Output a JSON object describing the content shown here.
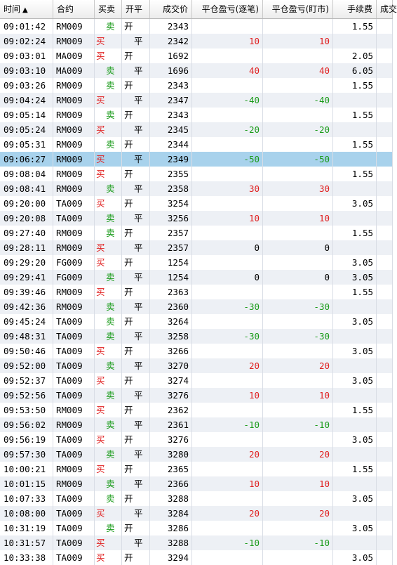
{
  "header": {
    "time": "时间",
    "sort_icon": "▲",
    "code": "合约",
    "bs": "买卖",
    "oc": "开平",
    "price": "成交价",
    "pl_trade": "平仓盈亏(逐笔)",
    "pl_mark": "平仓盈亏(盯市)",
    "fee": "手续费",
    "amount": "成交"
  },
  "colors": {
    "buy": "#e02020",
    "sell": "#1a9b1a",
    "selected_row": "#a8d2ec"
  },
  "selected_index": 9,
  "rows": [
    {
      "time": "09:01:42",
      "code": "RM009",
      "bs": "卖",
      "oc": "开",
      "price": "2343",
      "pl1": "",
      "pl2": "",
      "fee": "1.55"
    },
    {
      "time": "09:02:24",
      "code": "RM009",
      "bs": "买",
      "oc": "平",
      "price": "2342",
      "pl1": "10",
      "pl2": "10",
      "fee": ""
    },
    {
      "time": "09:03:01",
      "code": "MA009",
      "bs": "买",
      "oc": "开",
      "price": "1692",
      "pl1": "",
      "pl2": "",
      "fee": "2.05"
    },
    {
      "time": "09:03:10",
      "code": "MA009",
      "bs": "卖",
      "oc": "平",
      "price": "1696",
      "pl1": "40",
      "pl2": "40",
      "fee": "6.05"
    },
    {
      "time": "09:03:26",
      "code": "RM009",
      "bs": "卖",
      "oc": "开",
      "price": "2343",
      "pl1": "",
      "pl2": "",
      "fee": "1.55"
    },
    {
      "time": "09:04:24",
      "code": "RM009",
      "bs": "买",
      "oc": "平",
      "price": "2347",
      "pl1": "-40",
      "pl2": "-40",
      "fee": ""
    },
    {
      "time": "09:05:14",
      "code": "RM009",
      "bs": "卖",
      "oc": "开",
      "price": "2343",
      "pl1": "",
      "pl2": "",
      "fee": "1.55"
    },
    {
      "time": "09:05:24",
      "code": "RM009",
      "bs": "买",
      "oc": "平",
      "price": "2345",
      "pl1": "-20",
      "pl2": "-20",
      "fee": ""
    },
    {
      "time": "09:05:31",
      "code": "RM009",
      "bs": "卖",
      "oc": "开",
      "price": "2344",
      "pl1": "",
      "pl2": "",
      "fee": "1.55"
    },
    {
      "time": "09:06:27",
      "code": "RM009",
      "bs": "买",
      "oc": "平",
      "price": "2349",
      "pl1": "-50",
      "pl2": "-50",
      "fee": ""
    },
    {
      "time": "09:08:04",
      "code": "RM009",
      "bs": "买",
      "oc": "开",
      "price": "2355",
      "pl1": "",
      "pl2": "",
      "fee": "1.55"
    },
    {
      "time": "09:08:41",
      "code": "RM009",
      "bs": "卖",
      "oc": "平",
      "price": "2358",
      "pl1": "30",
      "pl2": "30",
      "fee": ""
    },
    {
      "time": "09:20:00",
      "code": "TA009",
      "bs": "买",
      "oc": "开",
      "price": "3254",
      "pl1": "",
      "pl2": "",
      "fee": "3.05"
    },
    {
      "time": "09:20:08",
      "code": "TA009",
      "bs": "卖",
      "oc": "平",
      "price": "3256",
      "pl1": "10",
      "pl2": "10",
      "fee": ""
    },
    {
      "time": "09:27:40",
      "code": "RM009",
      "bs": "卖",
      "oc": "开",
      "price": "2357",
      "pl1": "",
      "pl2": "",
      "fee": "1.55"
    },
    {
      "time": "09:28:11",
      "code": "RM009",
      "bs": "买",
      "oc": "平",
      "price": "2357",
      "pl1": "0",
      "pl2": "0",
      "fee": ""
    },
    {
      "time": "09:29:20",
      "code": "FG009",
      "bs": "买",
      "oc": "开",
      "price": "1254",
      "pl1": "",
      "pl2": "",
      "fee": "3.05"
    },
    {
      "time": "09:29:41",
      "code": "FG009",
      "bs": "卖",
      "oc": "平",
      "price": "1254",
      "pl1": "0",
      "pl2": "0",
      "fee": "3.05"
    },
    {
      "time": "09:39:46",
      "code": "RM009",
      "bs": "买",
      "oc": "开",
      "price": "2363",
      "pl1": "",
      "pl2": "",
      "fee": "1.55"
    },
    {
      "time": "09:42:36",
      "code": "RM009",
      "bs": "卖",
      "oc": "平",
      "price": "2360",
      "pl1": "-30",
      "pl2": "-30",
      "fee": ""
    },
    {
      "time": "09:45:24",
      "code": "TA009",
      "bs": "卖",
      "oc": "开",
      "price": "3264",
      "pl1": "",
      "pl2": "",
      "fee": "3.05"
    },
    {
      "time": "09:48:31",
      "code": "TA009",
      "bs": "卖",
      "oc": "平",
      "price": "3258",
      "pl1": "-30",
      "pl2": "-30",
      "fee": ""
    },
    {
      "time": "09:50:46",
      "code": "TA009",
      "bs": "买",
      "oc": "开",
      "price": "3266",
      "pl1": "",
      "pl2": "",
      "fee": "3.05"
    },
    {
      "time": "09:52:00",
      "code": "TA009",
      "bs": "卖",
      "oc": "平",
      "price": "3270",
      "pl1": "20",
      "pl2": "20",
      "fee": ""
    },
    {
      "time": "09:52:37",
      "code": "TA009",
      "bs": "买",
      "oc": "开",
      "price": "3274",
      "pl1": "",
      "pl2": "",
      "fee": "3.05"
    },
    {
      "time": "09:52:56",
      "code": "TA009",
      "bs": "卖",
      "oc": "平",
      "price": "3276",
      "pl1": "10",
      "pl2": "10",
      "fee": ""
    },
    {
      "time": "09:53:50",
      "code": "RM009",
      "bs": "买",
      "oc": "开",
      "price": "2362",
      "pl1": "",
      "pl2": "",
      "fee": "1.55"
    },
    {
      "time": "09:56:02",
      "code": "RM009",
      "bs": "卖",
      "oc": "平",
      "price": "2361",
      "pl1": "-10",
      "pl2": "-10",
      "fee": ""
    },
    {
      "time": "09:56:19",
      "code": "TA009",
      "bs": "买",
      "oc": "开",
      "price": "3276",
      "pl1": "",
      "pl2": "",
      "fee": "3.05"
    },
    {
      "time": "09:57:30",
      "code": "TA009",
      "bs": "卖",
      "oc": "平",
      "price": "3280",
      "pl1": "20",
      "pl2": "20",
      "fee": ""
    },
    {
      "time": "10:00:21",
      "code": "RM009",
      "bs": "买",
      "oc": "开",
      "price": "2365",
      "pl1": "",
      "pl2": "",
      "fee": "1.55"
    },
    {
      "time": "10:01:15",
      "code": "RM009",
      "bs": "卖",
      "oc": "平",
      "price": "2366",
      "pl1": "10",
      "pl2": "10",
      "fee": ""
    },
    {
      "time": "10:07:33",
      "code": "TA009",
      "bs": "卖",
      "oc": "开",
      "price": "3288",
      "pl1": "",
      "pl2": "",
      "fee": "3.05"
    },
    {
      "time": "10:08:00",
      "code": "TA009",
      "bs": "买",
      "oc": "平",
      "price": "3284",
      "pl1": "20",
      "pl2": "20",
      "fee": ""
    },
    {
      "time": "10:31:19",
      "code": "TA009",
      "bs": "卖",
      "oc": "开",
      "price": "3286",
      "pl1": "",
      "pl2": "",
      "fee": "3.05"
    },
    {
      "time": "10:31:57",
      "code": "TA009",
      "bs": "买",
      "oc": "平",
      "price": "3288",
      "pl1": "-10",
      "pl2": "-10",
      "fee": ""
    },
    {
      "time": "10:33:38",
      "code": "TA009",
      "bs": "买",
      "oc": "开",
      "price": "3294",
      "pl1": "",
      "pl2": "",
      "fee": "3.05"
    }
  ]
}
